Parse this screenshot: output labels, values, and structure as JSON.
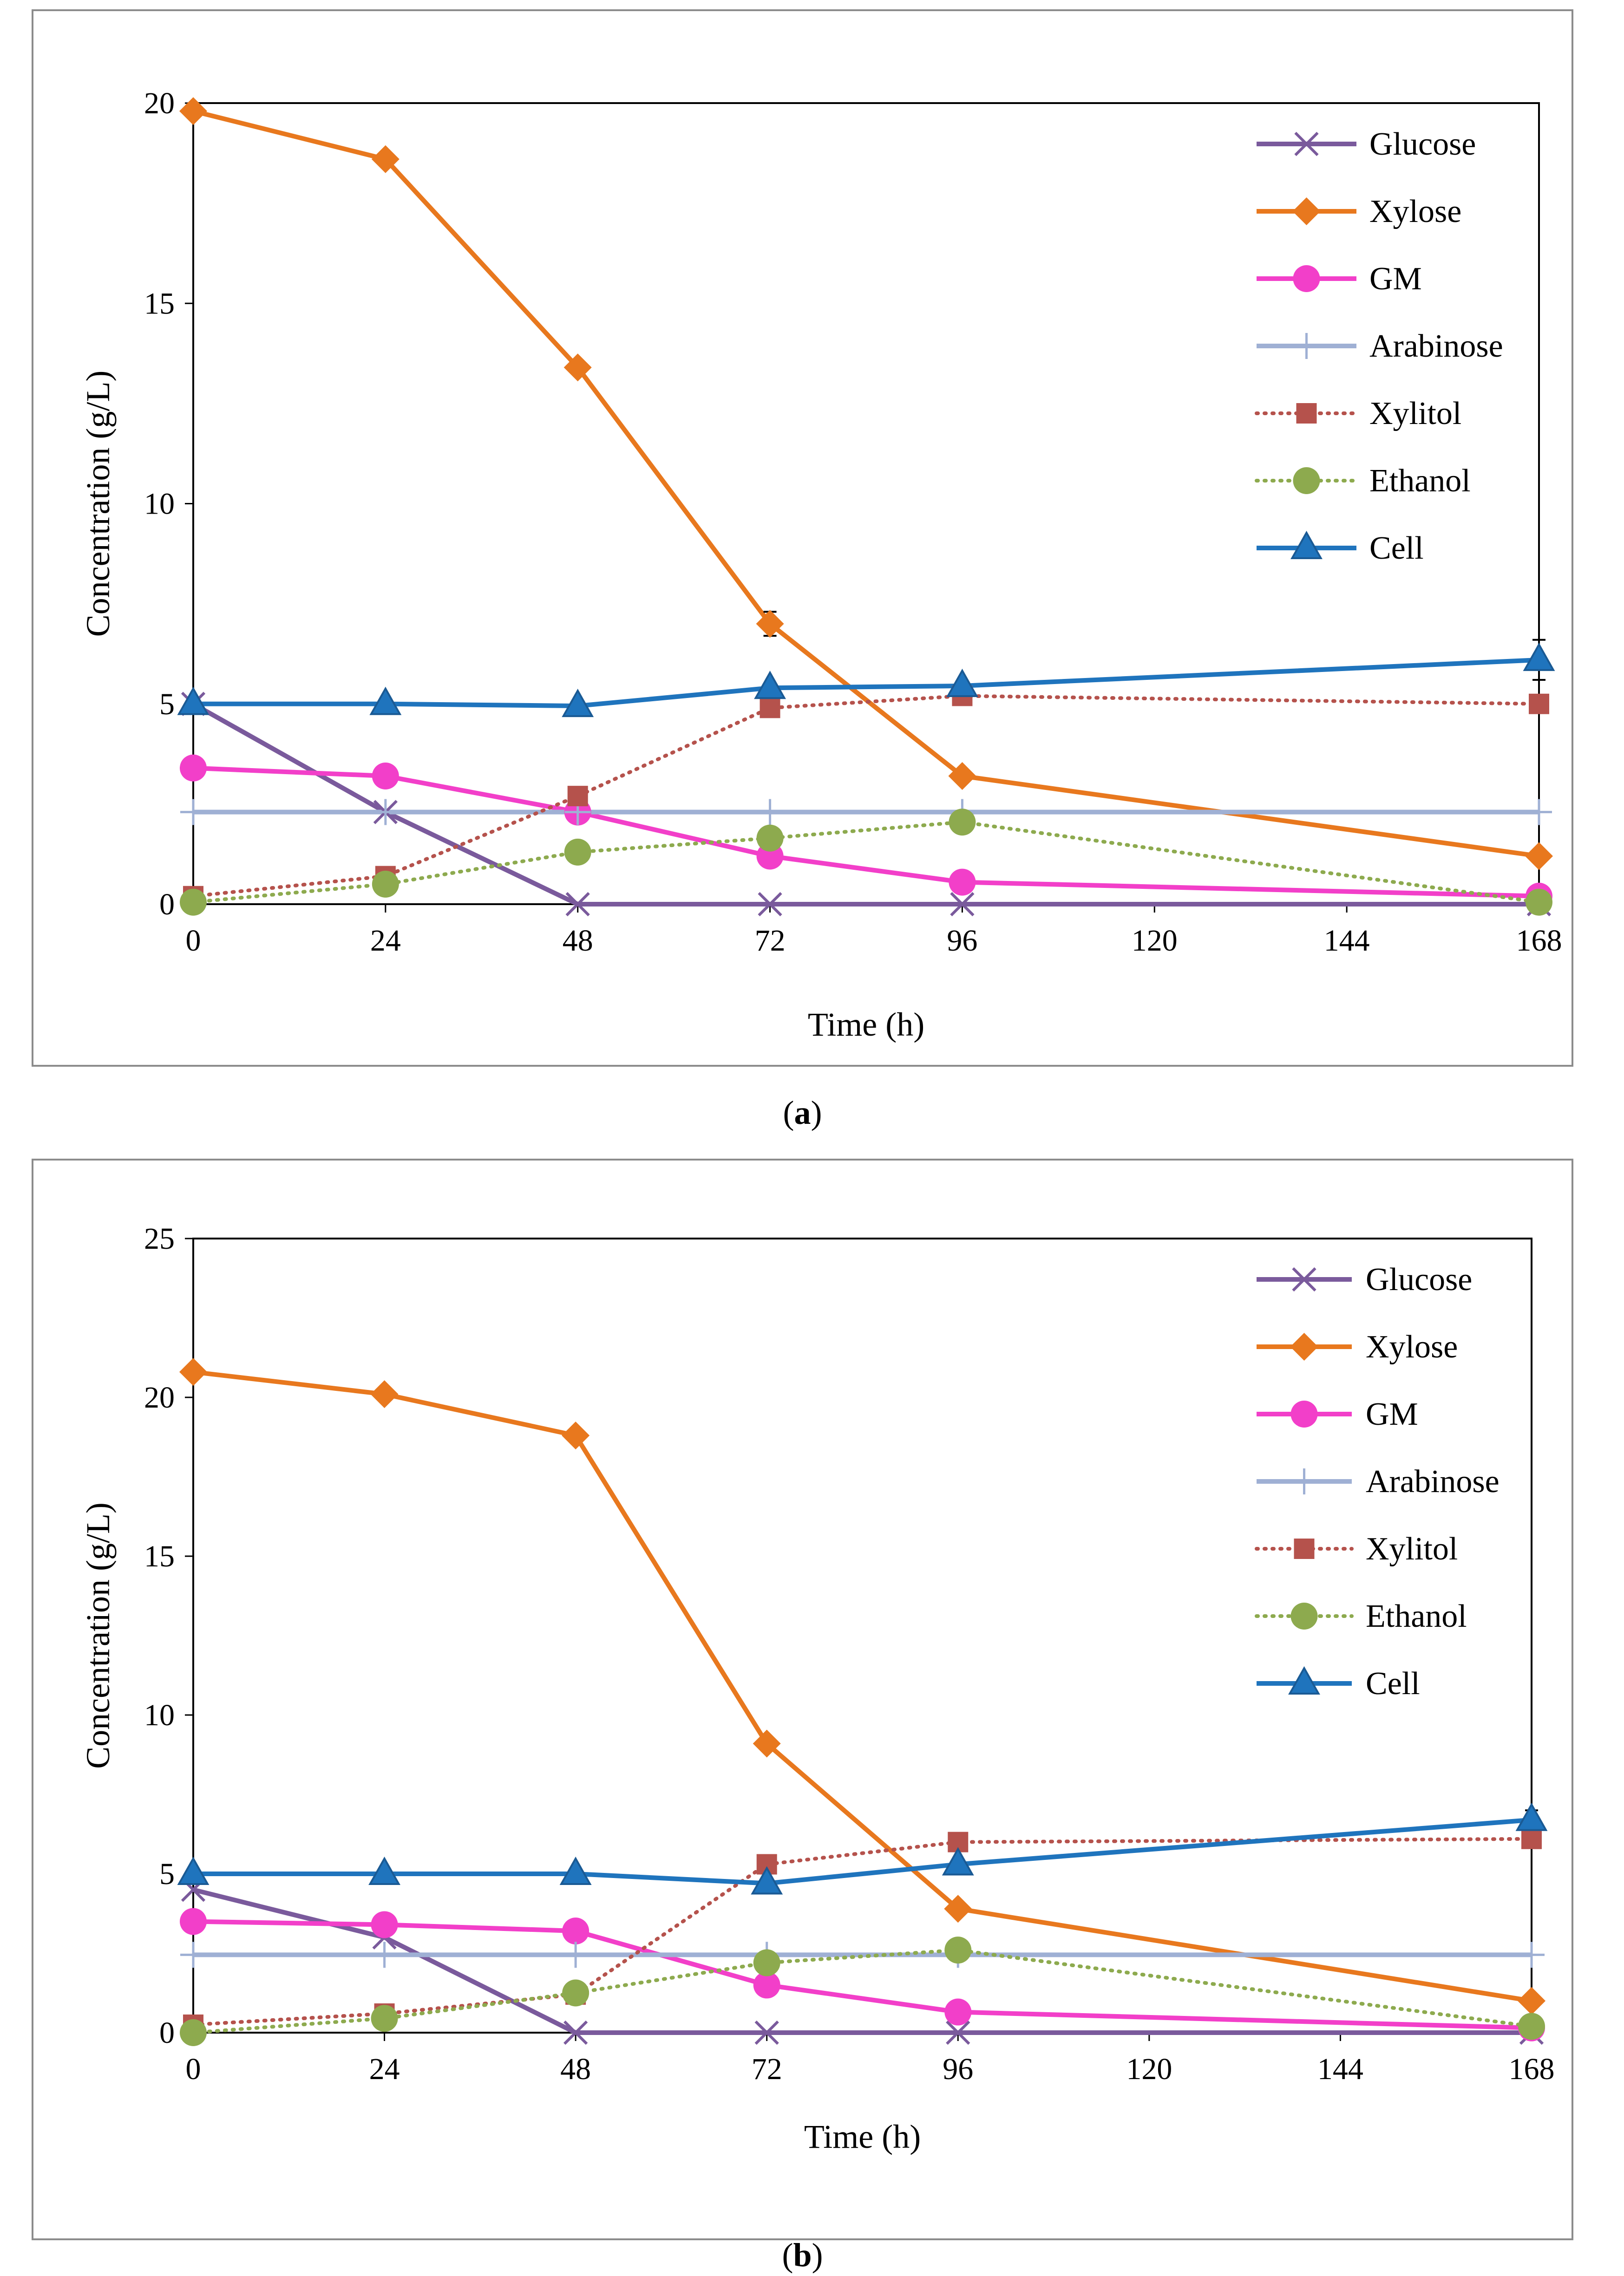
{
  "chart_data": [
    {
      "type": "line",
      "panel_label": "a",
      "xlabel": "Time (h)",
      "ylabel": "Concentration (g/L)",
      "xlim": [
        0,
        168
      ],
      "ylim": [
        0,
        20
      ],
      "xticks": [
        0,
        24,
        48,
        72,
        96,
        120,
        144,
        168
      ],
      "yticks": [
        0,
        5,
        10,
        15,
        20
      ],
      "legend_position": "top-right",
      "series": [
        {
          "name": "Glucose",
          "color": "#7a5a9c",
          "marker": "x",
          "dash": "solid",
          "x": [
            0,
            24,
            48,
            72,
            96,
            168
          ],
          "y": [
            5.0,
            2.3,
            0,
            0,
            0,
            0
          ]
        },
        {
          "name": "Xylose",
          "color": "#e8781e",
          "marker": "diamond",
          "dash": "solid",
          "x": [
            0,
            24,
            48,
            72,
            96,
            168
          ],
          "y": [
            19.8,
            18.6,
            13.4,
            7.0,
            3.2,
            1.2
          ],
          "errors": [
            0,
            0,
            0,
            0.3,
            0,
            0
          ]
        },
        {
          "name": "GM",
          "color": "#f23fc9",
          "marker": "circle",
          "dash": "solid",
          "x": [
            0,
            24,
            48,
            72,
            96,
            168
          ],
          "y": [
            3.4,
            3.2,
            2.3,
            1.2,
            0.55,
            0.2
          ]
        },
        {
          "name": "Arabinose",
          "color": "#9fb0d4",
          "marker": "plus",
          "dash": "solid",
          "x": [
            0,
            24,
            48,
            72,
            96,
            168
          ],
          "y": [
            2.3,
            2.3,
            2.3,
            2.3,
            2.3,
            2.3
          ]
        },
        {
          "name": "Xylitol",
          "color": "#b5524c",
          "marker": "square",
          "dash": "dotted",
          "x": [
            0,
            24,
            48,
            72,
            96,
            168
          ],
          "y": [
            0.2,
            0.7,
            2.7,
            4.9,
            5.2,
            5.0
          ]
        },
        {
          "name": "Ethanol",
          "color": "#8daa4e",
          "marker": "circle",
          "dash": "dotted",
          "x": [
            0,
            24,
            48,
            72,
            96,
            168
          ],
          "y": [
            0.05,
            0.5,
            1.3,
            1.65,
            2.05,
            0.05
          ]
        },
        {
          "name": "Cell",
          "color": "#1f74bd",
          "marker": "triangle",
          "dash": "solid",
          "x": [
            0,
            24,
            48,
            72,
            96,
            168
          ],
          "y": [
            5.0,
            5.0,
            4.95,
            5.4,
            5.45,
            6.1
          ],
          "errors": [
            0,
            0,
            0,
            0,
            0,
            0.5
          ]
        }
      ]
    },
    {
      "type": "line",
      "panel_label": "b",
      "xlabel": "Time (h)",
      "ylabel": "Concentration (g/L)",
      "xlim": [
        0,
        168
      ],
      "ylim": [
        0,
        25
      ],
      "xticks": [
        0,
        24,
        48,
        72,
        96,
        120,
        144,
        168
      ],
      "yticks": [
        0,
        5,
        10,
        15,
        20,
        25
      ],
      "legend_position": "top-right",
      "series": [
        {
          "name": "Glucose",
          "color": "#7a5a9c",
          "marker": "x",
          "dash": "solid",
          "x": [
            0,
            24,
            48,
            72,
            96,
            168
          ],
          "y": [
            4.5,
            3.0,
            0,
            0,
            0,
            0
          ]
        },
        {
          "name": "Xylose",
          "color": "#e8781e",
          "marker": "diamond",
          "dash": "solid",
          "x": [
            0,
            24,
            48,
            72,
            96,
            168
          ],
          "y": [
            20.8,
            20.1,
            18.8,
            9.1,
            3.9,
            1.0
          ]
        },
        {
          "name": "GM",
          "color": "#f23fc9",
          "marker": "circle",
          "dash": "solid",
          "x": [
            0,
            24,
            48,
            72,
            96,
            168
          ],
          "y": [
            3.5,
            3.4,
            3.2,
            1.5,
            0.65,
            0.15
          ]
        },
        {
          "name": "Arabinose",
          "color": "#9fb0d4",
          "marker": "plus",
          "dash": "solid",
          "x": [
            0,
            24,
            48,
            72,
            96,
            168
          ],
          "y": [
            2.45,
            2.45,
            2.45,
            2.45,
            2.45,
            2.45
          ]
        },
        {
          "name": "Xylitol",
          "color": "#b5524c",
          "marker": "square",
          "dash": "dotted",
          "x": [
            0,
            24,
            48,
            72,
            96,
            168
          ],
          "y": [
            0.25,
            0.6,
            1.2,
            5.3,
            6.0,
            6.1
          ]
        },
        {
          "name": "Ethanol",
          "color": "#8daa4e",
          "marker": "circle",
          "dash": "dotted",
          "x": [
            0,
            24,
            48,
            72,
            96,
            168
          ],
          "y": [
            0.0,
            0.45,
            1.25,
            2.2,
            2.6,
            0.2
          ]
        },
        {
          "name": "Cell",
          "color": "#1f74bd",
          "marker": "triangle",
          "dash": "solid",
          "x": [
            0,
            24,
            48,
            72,
            96,
            168
          ],
          "y": [
            5.0,
            5.0,
            5.0,
            4.7,
            5.3,
            6.7
          ],
          "errors": [
            0,
            0,
            0,
            0,
            0,
            0.3
          ]
        }
      ]
    }
  ]
}
